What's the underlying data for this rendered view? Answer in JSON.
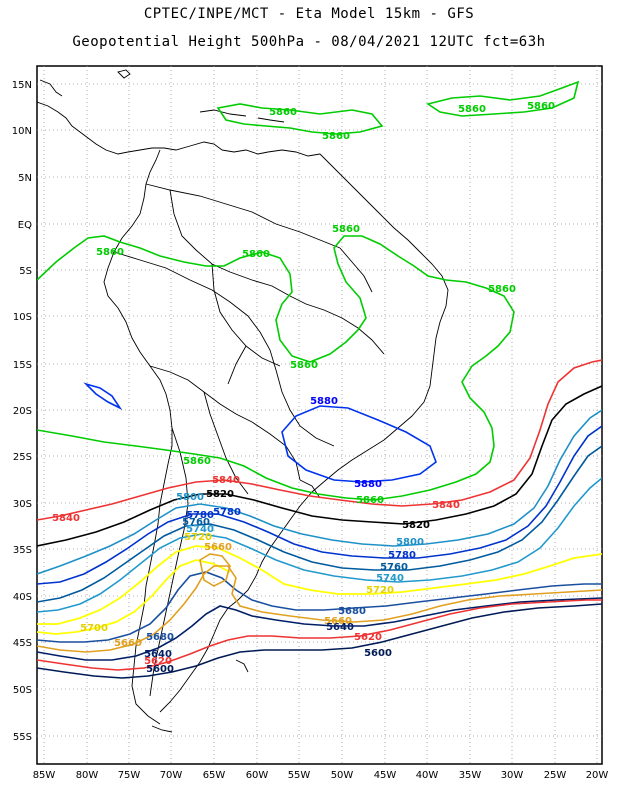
{
  "header": {
    "line1": "CPTEC/INPE/MCT -  Eta Model 15km - GFS",
    "line2": "Geopotential Height 500hPa - 08/04/2021 12UTC fct=63h"
  },
  "axes": {
    "lat_labels": [
      "15N",
      "10N",
      "5N",
      "EQ",
      "5S",
      "10S",
      "15S",
      "20S",
      "25S",
      "30S",
      "35S",
      "40S",
      "45S",
      "50S",
      "55S"
    ],
    "lon_labels": [
      "85W",
      "80W",
      "75W",
      "70W",
      "65W",
      "60W",
      "55W",
      "50W",
      "45W",
      "40W",
      "35W",
      "30W",
      "25W",
      "20W"
    ],
    "grid": "dotted"
  },
  "contours": {
    "colors": {
      "5880": "#0000ff",
      "5860": "#00cc00",
      "5840": "#ee3333",
      "5820": "#000000",
      "5800": "#1e90c8",
      "5780": "#0033cc",
      "5760": "#005a9e",
      "5740": "#2299cc",
      "5720": "#ffff00",
      "5700": "#ffff00",
      "5680": "#1a4fa0",
      "5660": "#e0a020",
      "5640": "#001f66",
      "5620": "#ee3333",
      "5600": "#001a55"
    },
    "labels": [
      {
        "text": "5860",
        "color_key": "5860"
      },
      {
        "text": "5860",
        "color_key": "5860"
      },
      {
        "text": "5860",
        "color_key": "5860"
      },
      {
        "text": "5860",
        "color_key": "5860"
      },
      {
        "text": "5860",
        "color_key": "5860"
      },
      {
        "text": "5860",
        "color_key": "5860"
      },
      {
        "text": "5860",
        "color_key": "5860"
      },
      {
        "text": "5860",
        "color_key": "5860"
      },
      {
        "text": "5860",
        "color_key": "5860"
      },
      {
        "text": "5860",
        "color_key": "5860"
      },
      {
        "text": "5860",
        "color_key": "5860"
      },
      {
        "text": "5880",
        "color_key": "5880"
      },
      {
        "text": "5880",
        "color_key": "5880"
      },
      {
        "text": "5840",
        "color_key": "5840"
      },
      {
        "text": "5840",
        "color_key": "5840"
      },
      {
        "text": "5840",
        "color_key": "5840"
      },
      {
        "text": "5820",
        "color_key": "5820"
      },
      {
        "text": "5820",
        "color_key": "5820"
      },
      {
        "text": "5800",
        "color_key": "5800"
      },
      {
        "text": "5800",
        "color_key": "5800"
      },
      {
        "text": "5780",
        "color_key": "5780"
      },
      {
        "text": "5780",
        "color_key": "5780"
      },
      {
        "text": "5780",
        "color_key": "5780"
      },
      {
        "text": "5760",
        "color_key": "5760"
      },
      {
        "text": "5760",
        "color_key": "5760"
      },
      {
        "text": "5740",
        "color_key": "5740"
      },
      {
        "text": "5740",
        "color_key": "5740"
      },
      {
        "text": "5720",
        "color_key": "5720"
      },
      {
        "text": "5720",
        "color_key": "5720"
      },
      {
        "text": "5700",
        "color_key": "5700"
      },
      {
        "text": "5680",
        "color_key": "5680"
      },
      {
        "text": "5680",
        "color_key": "5680"
      },
      {
        "text": "5660",
        "color_key": "5660"
      },
      {
        "text": "5660",
        "color_key": "5660"
      },
      {
        "text": "5660",
        "color_key": "5660"
      },
      {
        "text": "5640",
        "color_key": "5640"
      },
      {
        "text": "5640",
        "color_key": "5640"
      },
      {
        "text": "5620",
        "color_key": "5620"
      },
      {
        "text": "5620",
        "color_key": "5620"
      },
      {
        "text": "5600",
        "color_key": "5600"
      },
      {
        "text": "5600",
        "color_key": "5600"
      }
    ]
  }
}
